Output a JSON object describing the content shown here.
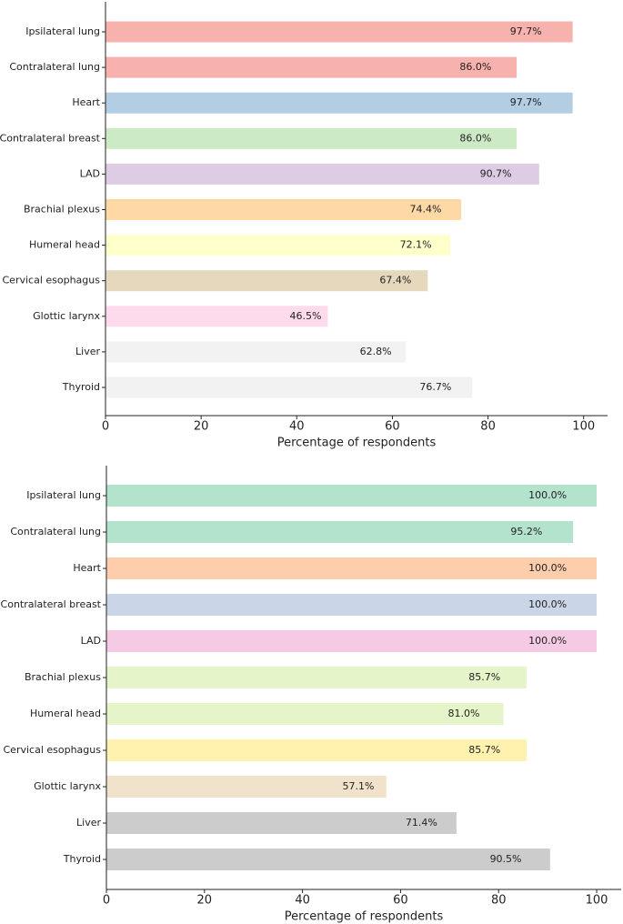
{
  "chart_data": [
    {
      "type": "bar",
      "orientation": "horizontal",
      "categories": [
        "Ipsilateral lung",
        "Contralateral lung",
        "Heart",
        "Contralateral breast",
        "LAD",
        "Brachial plexus",
        "Humeral head",
        "Cervical esophagus",
        "Glottic larynx",
        "Liver",
        "Thyroid"
      ],
      "values": [
        97.7,
        86.0,
        97.7,
        86.0,
        90.7,
        74.4,
        72.1,
        67.4,
        46.5,
        62.8,
        76.7
      ],
      "value_labels": [
        "97.7%",
        "86.0%",
        "97.7%",
        "86.0%",
        "90.7%",
        "74.4%",
        "72.1%",
        "67.4%",
        "46.5%",
        "62.8%",
        "76.7%"
      ],
      "colors": [
        "#f8b2ad",
        "#f8b2ad",
        "#b3cde3",
        "#ccebc5",
        "#decbe4",
        "#fed9a6",
        "#ffffcc",
        "#e5d8bd",
        "#fddaec",
        "#f2f2f2",
        "#f2f2f2"
      ],
      "x_label": "Percentage of respondents",
      "xlim": [
        0,
        105
      ],
      "xticks": [
        0,
        20,
        40,
        60,
        80,
        100
      ]
    },
    {
      "type": "bar",
      "orientation": "horizontal",
      "categories": [
        "Ipsilateral lung",
        "Contralateral lung",
        "Heart",
        "Contralateral breast",
        "LAD",
        "Brachial plexus",
        "Humeral head",
        "Cervical esophagus",
        "Glottic larynx",
        "Liver",
        "Thyroid"
      ],
      "values": [
        100.0,
        95.2,
        100.0,
        100.0,
        100.0,
        85.7,
        81.0,
        85.7,
        57.1,
        71.4,
        90.5
      ],
      "value_labels": [
        "100.0%",
        "95.2%",
        "100.0%",
        "100.0%",
        "100.0%",
        "85.7%",
        "81.0%",
        "85.7%",
        "57.1%",
        "71.4%",
        "90.5%"
      ],
      "colors": [
        "#b3e2cd",
        "#b3e2cd",
        "#fdcdac",
        "#cbd5e8",
        "#f4cae4",
        "#e6f5c9",
        "#e6f5c9",
        "#fff2ae",
        "#f1e2cc",
        "#cccccc",
        "#cccccc"
      ],
      "x_label": "Percentage of respondents",
      "xlim": [
        0,
        105
      ],
      "xticks": [
        0,
        20,
        40,
        60,
        80,
        100
      ]
    }
  ]
}
